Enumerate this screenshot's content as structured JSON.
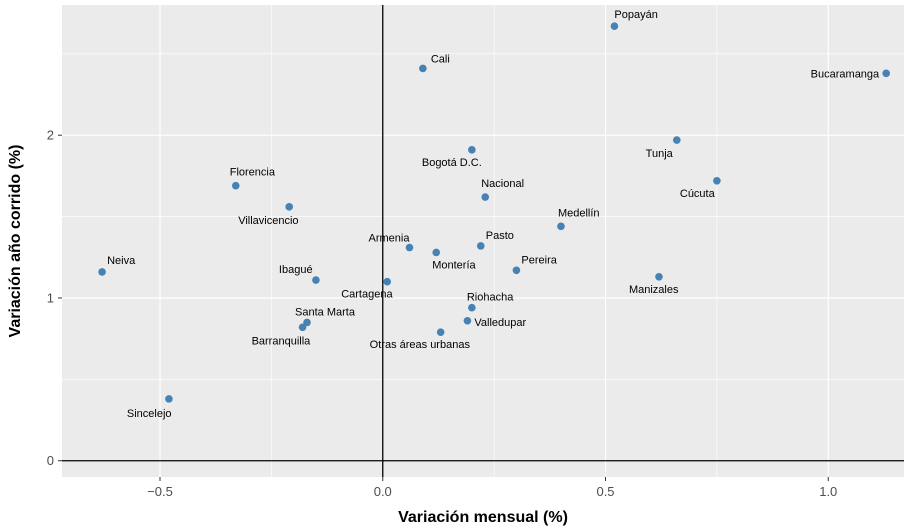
{
  "chart_data": {
    "type": "scatter",
    "title": "",
    "xlabel": "Variación mensual (%)",
    "ylabel": "Variación año corrido (%)",
    "xlim": [
      -0.72,
      1.17
    ],
    "ylim": [
      -0.1,
      2.8
    ],
    "xticks": [
      -0.5,
      0.0,
      0.5,
      1.0
    ],
    "xtick_labels": [
      "−0.5",
      "0.0",
      "0.5",
      "1.0"
    ],
    "yticks": [
      0,
      1,
      2
    ],
    "ytick_labels": [
      "0",
      "1",
      "2"
    ],
    "grid": true,
    "reference_lines": {
      "x": 0,
      "y": 0
    },
    "colors": {
      "panel": "#ebebeb",
      "grid": "#ffffff",
      "point": "#4682b4"
    },
    "points": [
      {
        "label": "Popayán",
        "x": 0.52,
        "y": 2.67
      },
      {
        "label": "Bucaramanga",
        "x": 1.13,
        "y": 2.38
      },
      {
        "label": "Cali",
        "x": 0.09,
        "y": 2.41
      },
      {
        "label": "Tunja",
        "x": 0.66,
        "y": 1.97
      },
      {
        "label": "Bogotá D.C.",
        "x": 0.2,
        "y": 1.91
      },
      {
        "label": "Cúcuta",
        "x": 0.75,
        "y": 1.72
      },
      {
        "label": "Florencia",
        "x": -0.33,
        "y": 1.69
      },
      {
        "label": "Nacional",
        "x": 0.23,
        "y": 1.62
      },
      {
        "label": "Villavicencio",
        "x": -0.21,
        "y": 1.56
      },
      {
        "label": "Medellín",
        "x": 0.4,
        "y": 1.44
      },
      {
        "label": "Pasto",
        "x": 0.22,
        "y": 1.32
      },
      {
        "label": "Armenia",
        "x": 0.06,
        "y": 1.31
      },
      {
        "label": "Montería",
        "x": 0.12,
        "y": 1.28
      },
      {
        "label": "Neiva",
        "x": -0.63,
        "y": 1.16
      },
      {
        "label": "Pereira",
        "x": 0.3,
        "y": 1.17
      },
      {
        "label": "Manizales",
        "x": 0.62,
        "y": 1.13
      },
      {
        "label": "Ibagué",
        "x": -0.15,
        "y": 1.11
      },
      {
        "label": "Cartagena",
        "x": 0.01,
        "y": 1.1
      },
      {
        "label": "Riohacha",
        "x": 0.2,
        "y": 0.94
      },
      {
        "label": "Valledupar",
        "x": 0.19,
        "y": 0.86
      },
      {
        "label": "Santa Marta",
        "x": -0.17,
        "y": 0.85
      },
      {
        "label": "Barranquilla",
        "x": -0.18,
        "y": 0.82
      },
      {
        "label": "Otras áreas urbanas",
        "x": 0.13,
        "y": 0.79
      },
      {
        "label": "Sincelejo",
        "x": -0.48,
        "y": 0.38
      }
    ]
  }
}
